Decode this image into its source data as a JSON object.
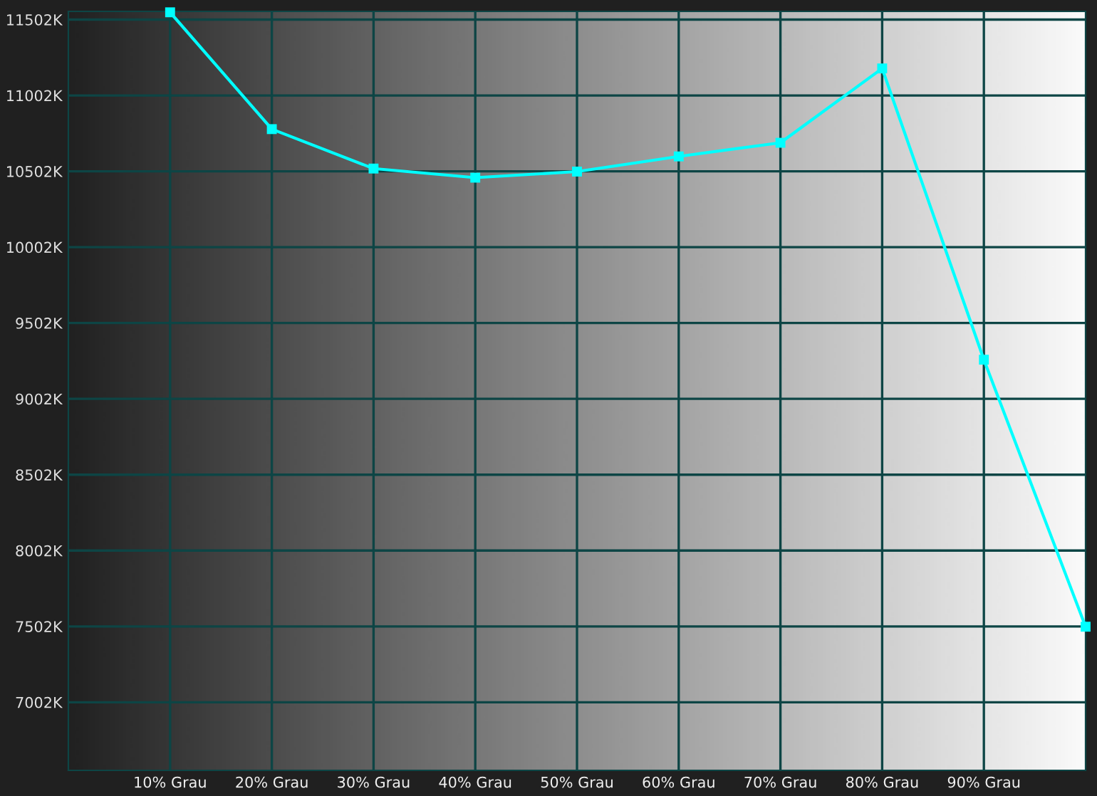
{
  "chart_data": {
    "type": "line",
    "x": [
      10,
      20,
      30,
      40,
      50,
      60,
      70,
      80,
      90,
      100
    ],
    "series": [
      {
        "color": "#00ffff",
        "values": [
          11550,
          10780,
          10520,
          10460,
          10500,
          10600,
          10690,
          11180,
          9260,
          7500
        ]
      }
    ],
    "xlim": [
      0,
      100
    ],
    "xticks": [
      {
        "value": 10,
        "label": "10% Grau"
      },
      {
        "value": 20,
        "label": "20% Grau"
      },
      {
        "value": 30,
        "label": "30% Grau"
      },
      {
        "value": 40,
        "label": "40% Grau"
      },
      {
        "value": 50,
        "label": "50% Grau"
      },
      {
        "value": 60,
        "label": "60% Grau"
      },
      {
        "value": 70,
        "label": "70% Grau"
      },
      {
        "value": 80,
        "label": "80% Grau"
      },
      {
        "value": 90,
        "label": "90% Grau"
      }
    ],
    "ylim": [
      6553,
      11556
    ],
    "yticks": [
      {
        "value": 7002,
        "label": "7002K"
      },
      {
        "value": 7502,
        "label": "7502K"
      },
      {
        "value": 8002,
        "label": "8002K"
      },
      {
        "value": 8502,
        "label": "8502K"
      },
      {
        "value": 9002,
        "label": "9002K"
      },
      {
        "value": 9502,
        "label": "9502K"
      },
      {
        "value": 10002,
        "label": "10002K"
      },
      {
        "value": 10502,
        "label": "10502K"
      },
      {
        "value": 11002,
        "label": "11002K"
      },
      {
        "value": 11502,
        "label": "11502K"
      }
    ],
    "grid": true,
    "marker": "square",
    "line_style": "solid",
    "legend": false
  }
}
